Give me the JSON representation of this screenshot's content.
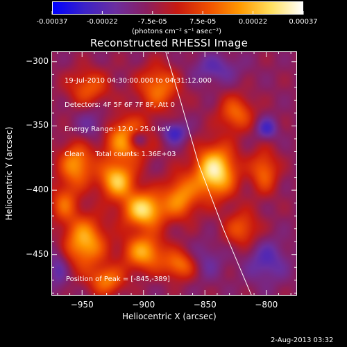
{
  "colorbar": {
    "tick_labels": [
      "-0.00037",
      "-0.00022",
      "-7.5e-05",
      "7.5e-05",
      "0.00022",
      "0.00037"
    ],
    "units": "(photons cm⁻² s⁻¹ asec⁻²)",
    "colors": [
      "#0000ff",
      "#3a22c8",
      "#6b2ea0",
      "#8a1e60",
      "#c81a10",
      "#f05000",
      "#ff9a00",
      "#ffe060",
      "#ffffff"
    ]
  },
  "chart_data": {
    "type": "heatmap",
    "title": "Reconstructed RHESSI Image",
    "xlabel": "Heliocentric X (arcsec)",
    "ylabel": "Heliocentric Y (arcsec)",
    "xlim": [
      -975,
      -775
    ],
    "ylim": [
      -482,
      -292
    ],
    "x_ticks": [
      -950,
      -900,
      -850,
      -800
    ],
    "y_ticks": [
      -300,
      -350,
      -400,
      -450
    ],
    "x_tick_labels": [
      "−950",
      "−900",
      "−850",
      "−800"
    ],
    "y_tick_labels": [
      "−300",
      "−350",
      "−400",
      "−450"
    ],
    "value_range": [
      -0.00037,
      0.00037
    ],
    "info_lines": [
      "19-Jul-2010 04:30:00.000 to 04:31:12.000",
      "Detectors: 4F 5F 6F 7F 8F, Att 0",
      "Energy Range: 12.0 - 25.0 keV",
      "Clean     Total counts: 1.36E+03"
    ],
    "peak_label": "Position of Peak = [-845,-389]",
    "peak_position": [
      -845,
      -389
    ],
    "limb_curve": [
      [
        -882,
        -292
      ],
      [
        -870,
        -330
      ],
      [
        -855,
        -380
      ],
      [
        -835,
        -430
      ],
      [
        -812,
        -482
      ]
    ],
    "sources": [
      {
        "x": -842,
        "y": -385,
        "amp": 1.0,
        "sx": 12,
        "sy": 14
      },
      {
        "x": -900,
        "y": -415,
        "amp": 0.9,
        "sx": 12,
        "sy": 10
      },
      {
        "x": -922,
        "y": -392,
        "amp": 0.8,
        "sx": 10,
        "sy": 10
      },
      {
        "x": -948,
        "y": -440,
        "amp": 0.75,
        "sx": 12,
        "sy": 14
      },
      {
        "x": -900,
        "y": -448,
        "amp": 0.7,
        "sx": 12,
        "sy": 10
      },
      {
        "x": -915,
        "y": -360,
        "amp": 0.7,
        "sx": 14,
        "sy": 12
      },
      {
        "x": -955,
        "y": -380,
        "amp": 0.65,
        "sx": 10,
        "sy": 12
      },
      {
        "x": -888,
        "y": -320,
        "amp": 0.55,
        "sx": 12,
        "sy": 12
      },
      {
        "x": -930,
        "y": -470,
        "amp": 0.55,
        "sx": 10,
        "sy": 8
      },
      {
        "x": -870,
        "y": -405,
        "amp": 0.6,
        "sx": 10,
        "sy": 12
      },
      {
        "x": -825,
        "y": -340,
        "amp": 0.5,
        "sx": 10,
        "sy": 10
      },
      {
        "x": -802,
        "y": -385,
        "amp": 0.5,
        "sx": 8,
        "sy": 12
      },
      {
        "x": -870,
        "y": -458,
        "amp": 0.55,
        "sx": 10,
        "sy": 8
      },
      {
        "x": -945,
        "y": -320,
        "amp": 0.45,
        "sx": 12,
        "sy": 10
      },
      {
        "x": -820,
        "y": -430,
        "amp": 0.45,
        "sx": 10,
        "sy": 10
      },
      {
        "x": -965,
        "y": -410,
        "amp": 0.45,
        "sx": 8,
        "sy": 10
      }
    ],
    "sinks": [
      {
        "x": -905,
        "y": -360,
        "amp": 0.6,
        "sx": 6,
        "sy": 5
      },
      {
        "x": -875,
        "y": -355,
        "amp": 0.55,
        "sx": 7,
        "sy": 6
      },
      {
        "x": -800,
        "y": -352,
        "amp": 0.5,
        "sx": 6,
        "sy": 6
      },
      {
        "x": -940,
        "y": -350,
        "amp": 0.35,
        "sx": 10,
        "sy": 10
      },
      {
        "x": -842,
        "y": -305,
        "amp": 0.35,
        "sx": 14,
        "sy": 8
      },
      {
        "x": -800,
        "y": -455,
        "amp": 0.4,
        "sx": 12,
        "sy": 12
      },
      {
        "x": -850,
        "y": -455,
        "amp": 0.3,
        "sx": 10,
        "sy": 10
      },
      {
        "x": -970,
        "y": -460,
        "amp": 0.35,
        "sx": 6,
        "sy": 12
      }
    ]
  },
  "datestamp": "2-Aug-2013 03:32"
}
